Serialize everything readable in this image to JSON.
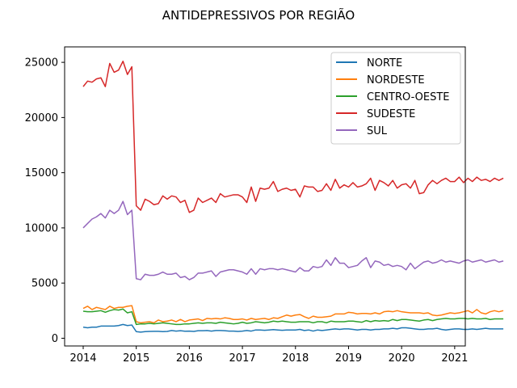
{
  "chart_data": {
    "type": "line",
    "title": "ANTIDEPRESSIVOS POR REGIÃO",
    "xlabel": "",
    "ylabel": "",
    "xlim": [
      2013.65,
      2021.2
    ],
    "ylim": [
      -700,
      26400
    ],
    "x_ticks": [
      {
        "value": 2014,
        "label": "2014"
      },
      {
        "value": 2015,
        "label": "2015"
      },
      {
        "value": 2016,
        "label": "2016"
      },
      {
        "value": 2017,
        "label": "2017"
      },
      {
        "value": 2018,
        "label": "2018"
      },
      {
        "value": 2019,
        "label": "2019"
      },
      {
        "value": 2020,
        "label": "2020"
      },
      {
        "value": 2021,
        "label": "2021"
      }
    ],
    "y_ticks": [
      {
        "value": 0,
        "label": "0"
      },
      {
        "value": 5000,
        "label": "5000"
      },
      {
        "value": 10000,
        "label": "10000"
      },
      {
        "value": 15000,
        "label": "15000"
      },
      {
        "value": 20000,
        "label": "20000"
      },
      {
        "value": 25000,
        "label": "25000"
      }
    ],
    "grid": false,
    "legend_position": "top-right",
    "x_start": "2014-01",
    "x_step": "1 month",
    "series": [
      {
        "name": "NORTE",
        "color": "#1f77b4",
        "values": [
          1000,
          950,
          1000,
          1000,
          1100,
          1100,
          1100,
          1100,
          1150,
          1250,
          1150,
          1200,
          600,
          550,
          600,
          620,
          630,
          630,
          600,
          620,
          700,
          650,
          680,
          640,
          650,
          620,
          680,
          680,
          700,
          650,
          700,
          700,
          680,
          650,
          650,
          620,
          650,
          700,
          650,
          750,
          750,
          720,
          750,
          780,
          750,
          720,
          750,
          750,
          750,
          800,
          700,
          750,
          650,
          750,
          700,
          750,
          800,
          850,
          800,
          850,
          850,
          800,
          750,
          800,
          800,
          750,
          800,
          800,
          850,
          850,
          900,
          850,
          950,
          950,
          900,
          850,
          800,
          800,
          850,
          850,
          900,
          800,
          750,
          800,
          850,
          850,
          800,
          800,
          850,
          800,
          850,
          900,
          850,
          850,
          850,
          850
        ]
      },
      {
        "name": "NORDESTE",
        "color": "#ff7f0e",
        "values": [
          2700,
          2900,
          2600,
          2800,
          2700,
          2600,
          2900,
          2700,
          2800,
          2800,
          2900,
          2950,
          1500,
          1400,
          1450,
          1500,
          1400,
          1650,
          1500,
          1550,
          1650,
          1500,
          1700,
          1500,
          1650,
          1700,
          1750,
          1600,
          1800,
          1750,
          1800,
          1750,
          1850,
          1800,
          1700,
          1700,
          1750,
          1650,
          1800,
          1700,
          1750,
          1800,
          1700,
          1850,
          1800,
          1950,
          2100,
          2000,
          2100,
          2150,
          1950,
          1800,
          2000,
          1900,
          1900,
          1950,
          2000,
          2200,
          2200,
          2200,
          2350,
          2300,
          2200,
          2250,
          2250,
          2200,
          2300,
          2200,
          2400,
          2450,
          2400,
          2500,
          2400,
          2350,
          2300,
          2300,
          2300,
          2250,
          2300,
          2100,
          2050,
          2100,
          2200,
          2300,
          2250,
          2300,
          2400,
          2500,
          2300,
          2600,
          2300,
          2200,
          2400,
          2500,
          2400,
          2500
        ]
      },
      {
        "name": "CENTRO-OESTE",
        "color": "#2ca02c",
        "values": [
          2450,
          2400,
          2400,
          2450,
          2500,
          2350,
          2500,
          2600,
          2550,
          2650,
          2300,
          2400,
          1250,
          1300,
          1300,
          1350,
          1300,
          1350,
          1400,
          1350,
          1300,
          1250,
          1250,
          1300,
          1300,
          1350,
          1400,
          1350,
          1400,
          1400,
          1350,
          1450,
          1400,
          1350,
          1300,
          1350,
          1450,
          1350,
          1400,
          1500,
          1450,
          1400,
          1450,
          1550,
          1500,
          1550,
          1500,
          1450,
          1450,
          1500,
          1500,
          1500,
          1400,
          1500,
          1500,
          1400,
          1550,
          1500,
          1500,
          1500,
          1550,
          1550,
          1500,
          1450,
          1600,
          1500,
          1600,
          1550,
          1600,
          1550,
          1700,
          1600,
          1700,
          1700,
          1650,
          1600,
          1550,
          1650,
          1700,
          1600,
          1700,
          1750,
          1800,
          1750,
          1750,
          1800,
          1800,
          1750,
          1800,
          1750,
          1750,
          1800,
          1700,
          1750,
          1750,
          1750
        ]
      },
      {
        "name": "SUDESTE",
        "color": "#d62728",
        "values": [
          22800,
          23300,
          23200,
          23500,
          23600,
          22800,
          24900,
          24100,
          24300,
          25100,
          23900,
          24600,
          12000,
          11600,
          12600,
          12400,
          12100,
          12200,
          12900,
          12600,
          12900,
          12800,
          12300,
          12500,
          11400,
          11600,
          12700,
          12300,
          12500,
          12700,
          12300,
          13100,
          12800,
          12900,
          13000,
          13000,
          12800,
          12300,
          13700,
          12400,
          13600,
          13500,
          13600,
          14200,
          13300,
          13500,
          13600,
          13400,
          13500,
          12800,
          13800,
          13700,
          13700,
          13300,
          13400,
          14000,
          13400,
          14400,
          13600,
          13900,
          13700,
          14100,
          13700,
          13800,
          14000,
          14500,
          13400,
          14300,
          14100,
          13800,
          14300,
          13600,
          13900,
          14000,
          13600,
          14300,
          13100,
          13200,
          13900,
          14300,
          14000,
          14300,
          14500,
          14200,
          14200,
          14600,
          14100,
          14500,
          14200,
          14600,
          14300,
          14400,
          14200,
          14500,
          14300,
          14500
        ]
      },
      {
        "name": "SUL",
        "color": "#9467bd",
        "values": [
          10000,
          10400,
          10800,
          11000,
          11300,
          10900,
          11600,
          11300,
          11600,
          12400,
          11200,
          11600,
          5400,
          5300,
          5800,
          5700,
          5700,
          5800,
          6000,
          5800,
          5800,
          5900,
          5500,
          5600,
          5300,
          5500,
          5900,
          5900,
          6000,
          6100,
          5600,
          6000,
          6100,
          6200,
          6200,
          6100,
          6000,
          5800,
          6300,
          5800,
          6300,
          6200,
          6300,
          6300,
          6200,
          6300,
          6200,
          6100,
          6000,
          6400,
          6100,
          6100,
          6500,
          6400,
          6500,
          7100,
          6600,
          7300,
          6800,
          6800,
          6400,
          6500,
          6600,
          7000,
          7300,
          6400,
          7000,
          6900,
          6600,
          6700,
          6500,
          6600,
          6500,
          6200,
          6800,
          6300,
          6600,
          6900,
          7000,
          6800,
          6900,
          7100,
          6900,
          7000,
          6900,
          6800,
          7000,
          7100,
          6900,
          7000,
          7100,
          6900,
          7000,
          7100,
          6900,
          7000
        ]
      }
    ]
  }
}
